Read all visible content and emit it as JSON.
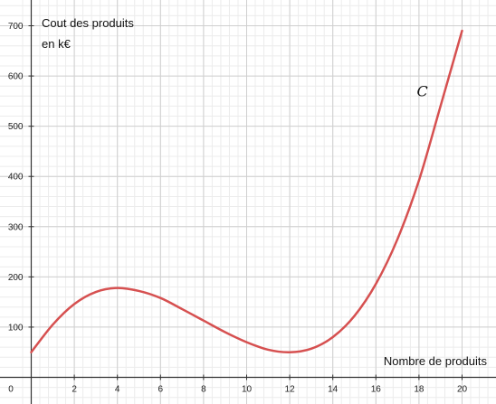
{
  "chart_data": {
    "type": "line",
    "title": "",
    "ylabel_lines": [
      "Cout des produits",
      "en k€"
    ],
    "xlabel": "Nombre de produits",
    "curve_label": "C",
    "xlim": [
      -0.6,
      21.5
    ],
    "ylim": [
      -50,
      760
    ],
    "x_ticks": [
      2,
      4,
      6,
      8,
      10,
      12,
      14,
      16,
      18,
      20
    ],
    "y_ticks": [
      100,
      200,
      300,
      400,
      500,
      600,
      700
    ],
    "origin_label": "0",
    "grid": true,
    "series": [
      {
        "color": "#d65050",
        "x": [
          0,
          1,
          2,
          3,
          4,
          5,
          6,
          7,
          8,
          9,
          10,
          11,
          12,
          13,
          14,
          15,
          16,
          17,
          18,
          19,
          20
        ],
        "y": [
          50,
          105,
          146,
          170,
          178,
          172,
          158,
          136,
          113,
          90,
          70,
          55,
          50,
          57,
          80,
          122,
          186,
          275,
          392,
          540,
          690
        ]
      }
    ]
  }
}
